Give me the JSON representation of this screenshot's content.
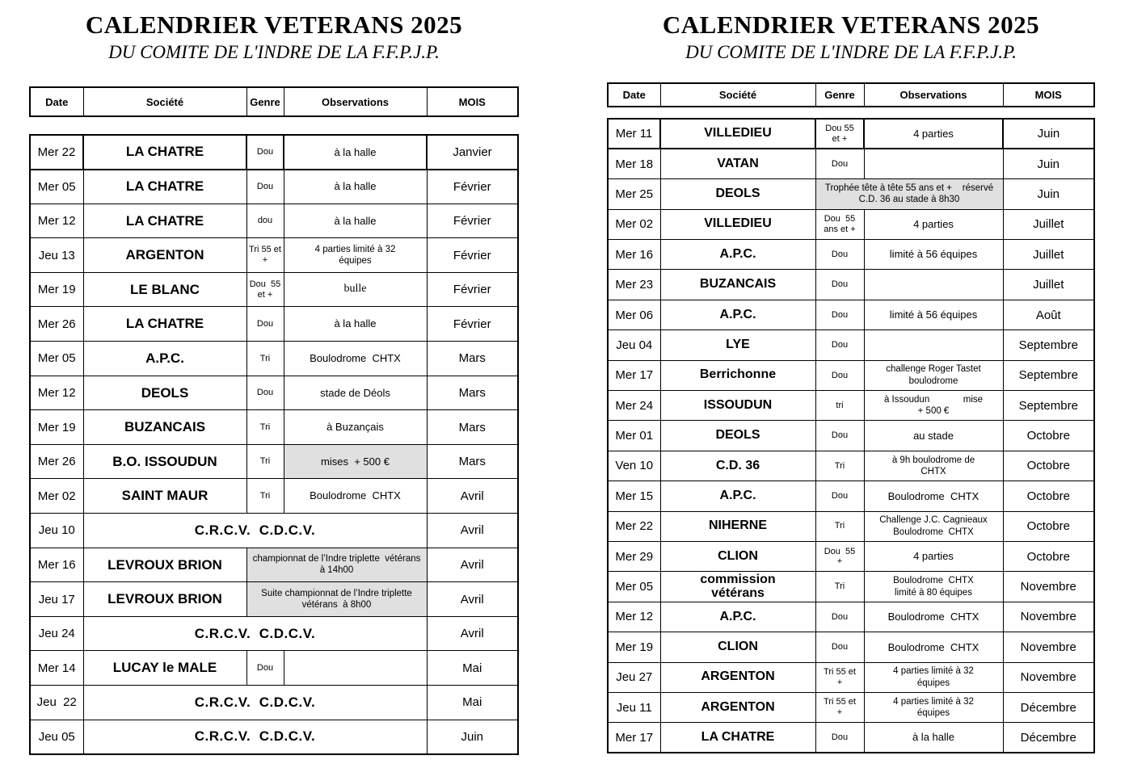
{
  "page": {
    "title": "CALENDRIER VETERANS 2025",
    "subtitle": "DU COMITE DE L'INDRE DE LA F.F.P.J.P."
  },
  "columns": [
    "Date",
    "Société",
    "Genre",
    "Observations",
    "MOIS"
  ],
  "left": {
    "rows": [
      {
        "date": "Mer 22",
        "societe": "LA CHATRE",
        "genre": "Dou",
        "obs": "à la halle",
        "mois": "Janvier"
      },
      {
        "date": "Mer 05",
        "societe": "LA CHATRE",
        "genre": "Dou",
        "obs": "à la halle",
        "mois": "Février"
      },
      {
        "date": "Mer 12",
        "societe": "LA CHATRE",
        "genre": "dou",
        "obs": "à la halle",
        "mois": "Février"
      },
      {
        "date": "Jeu 13",
        "societe": "ARGENTON",
        "genre": "Tri 55 et\n+",
        "obs": "4 parties limité à 32\néquipes",
        "mois": "Février"
      },
      {
        "date": "Mer 19",
        "societe": "LE BLANC",
        "genre": "Dou  55\net +",
        "obs": "bulle",
        "serifObs": true,
        "mois": "Février"
      },
      {
        "date": "Mer 26",
        "societe": "LA CHATRE",
        "genre": "Dou",
        "obs": "à la halle",
        "mois": "Février"
      },
      {
        "date": "Mer 05",
        "societe": "A.P.C.",
        "genre": "Tri",
        "obs": "Boulodrome  CHTX",
        "mois": "Mars"
      },
      {
        "date": "Mer 12",
        "societe": "DEOLS",
        "genre": "Dou",
        "obs": "stade de Déols",
        "mois": "Mars"
      },
      {
        "date": "Mer 19",
        "societe": "BUZANCAIS",
        "genre": "Tri",
        "obs": "à Buzançais",
        "mois": "Mars"
      },
      {
        "date": "Mer 26",
        "societe": "B.O. ISSOUDUN",
        "genre": "Tri",
        "obs": "mises  + 500 €",
        "shadedObs": true,
        "mois": "Mars"
      },
      {
        "date": "Mer 02",
        "societe": "SAINT MAUR",
        "genre": "Tri",
        "obs": "Boulodrome  CHTX",
        "mois": "Avril"
      },
      {
        "date": "Jeu 10",
        "societe": "C.R.C.V.  C.D.C.V.",
        "span": true,
        "mois": "Avril"
      },
      {
        "date": "Mer 16",
        "societe": "LEVROUX BRION",
        "merge": true,
        "obs": "championnat de l’Indre triplette  vétérans\nà 14h00",
        "mois": "Avril"
      },
      {
        "date": "Jeu 17",
        "societe": "LEVROUX BRION",
        "merge": true,
        "obs": "Suite championnat de l’Indre triplette\nvétérans  à 8h00",
        "mois": "Avril"
      },
      {
        "date": "Jeu 24",
        "societe": "C.R.C.V.  C.D.C.V.",
        "span": true,
        "mois": "Avril"
      },
      {
        "date": "Mer 14",
        "societe": "LUCAY le MALE",
        "genre": "Dou",
        "obs": "",
        "mois": "Mai"
      },
      {
        "date": "Jeu  22",
        "societe": "C.R.C.V.  C.D.C.V.",
        "span": true,
        "mois": "Mai"
      },
      {
        "date": "Jeu 05",
        "societe": "C.R.C.V.  C.D.C.V.",
        "span": true,
        "mois": "Juin"
      }
    ]
  },
  "right": {
    "rows": [
      {
        "date": "Mer 11",
        "societe": "VILLEDIEU",
        "genre": "Dou 55\net +",
        "obs": "4 parties",
        "mois": "Juin"
      },
      {
        "date": "Mer 18",
        "societe": "VATAN",
        "genre": "Dou",
        "obs": "",
        "mois": "Juin"
      },
      {
        "date": "Mer 25",
        "societe": "DEOLS",
        "merge": true,
        "obs": "Trophée tête à tête 55 ans et +    réservé\nC.D. 36 au stade à 8h30",
        "mois": "Juin"
      },
      {
        "date": "Mer 02",
        "societe": "VILLEDIEU",
        "genre": "Dou  55\nans et +",
        "obs": "4 parties",
        "mois": "Juillet"
      },
      {
        "date": "Mer 16",
        "societe": "A.P.C.",
        "genre": "Dou",
        "obs": "limité à 56 équipes",
        "mois": "Juillet"
      },
      {
        "date": "Mer 23",
        "societe": "BUZANCAIS",
        "genre": "Dou",
        "obs": "",
        "mois": "Juillet"
      },
      {
        "date": "Mer 06",
        "societe": "A.P.C.",
        "genre": "Dou",
        "obs": "limité à 56 équipes",
        "mois": "Août"
      },
      {
        "date": "Jeu 04",
        "societe": "LYE",
        "genre": "Dou",
        "obs": "",
        "mois": "Septembre"
      },
      {
        "date": "Mer 17",
        "societe": "Berrichonne",
        "genre": "Dou",
        "obs": "challenge Roger Tastet\nboulodrome",
        "mois": "Septembre"
      },
      {
        "date": "Mer 24",
        "societe": "ISSOUDUN",
        "genre": "tri",
        "obs": "à Issoudun             mise\n+ 500 €",
        "mois": "Septembre"
      },
      {
        "date": "Mer 01",
        "societe": "DEOLS",
        "genre": "Dou",
        "obs": "au stade",
        "mois": "Octobre"
      },
      {
        "date": "Ven 10",
        "societe": "C.D. 36",
        "genre": "Tri",
        "obs": "à 9h boulodrome de\nCHTX",
        "mois": "Octobre"
      },
      {
        "date": "Mer 15",
        "societe": "A.P.C.",
        "genre": "Dou",
        "obs": "Boulodrome  CHTX",
        "mois": "Octobre"
      },
      {
        "date": "Mer 22",
        "societe": "NIHERNE",
        "genre": "Tri",
        "obs": "Challenge J.C. Cagnieaux\nBoulodrome  CHTX",
        "mois": "Octobre"
      },
      {
        "date": "Mer 29",
        "societe": "CLION",
        "genre": "Dou  55\n+",
        "obs": "4 parties",
        "mois": "Octobre"
      },
      {
        "date": "Mer 05",
        "societe": "commission\nvétérans",
        "genre": "Tri",
        "obs": "Boulodrome  CHTX\nlimité à 80 équipes",
        "mois": "Novembre"
      },
      {
        "date": "Mer 12",
        "societe": "A.P.C.",
        "genre": "Dou",
        "obs": "Boulodrome  CHTX",
        "mois": "Novembre"
      },
      {
        "date": "Mer 19",
        "societe": "CLION",
        "genre": "Dou",
        "obs": "Boulodrome  CHTX",
        "mois": "Novembre"
      },
      {
        "date": "Jeu 27",
        "societe": "ARGENTON",
        "genre": "Tri 55 et\n+",
        "obs": "4 parties limité à 32\néquipes",
        "mois": "Novembre"
      },
      {
        "date": "Jeu 11",
        "societe": "ARGENTON",
        "genre": "Tri 55 et\n+",
        "obs": "4 parties limité à 32\néquipes",
        "mois": "Décembre"
      },
      {
        "date": "Mer 17",
        "societe": "LA CHATRE",
        "genre": "Dou",
        "obs": "à la halle",
        "mois": "Décembre"
      }
    ]
  }
}
